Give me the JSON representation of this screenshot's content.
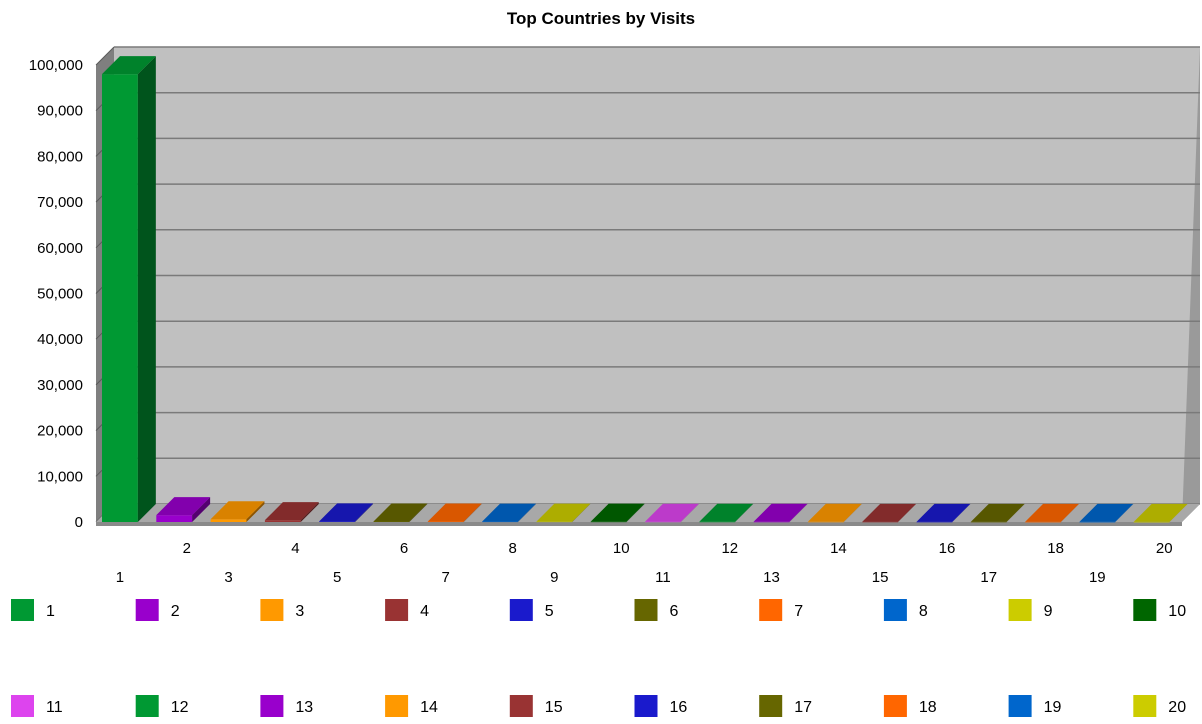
{
  "chart_data": {
    "type": "bar",
    "title": "Top Countries by Visits",
    "categories": [
      "1",
      "2",
      "3",
      "4",
      "5",
      "6",
      "7",
      "8",
      "9",
      "10",
      "11",
      "12",
      "13",
      "14",
      "15",
      "16",
      "17",
      "18",
      "19",
      "20"
    ],
    "values": [
      98000,
      1500,
      600,
      400,
      150,
      120,
      100,
      90,
      80,
      70,
      60,
      55,
      50,
      45,
      40,
      35,
      30,
      25,
      20,
      15
    ],
    "ylim": [
      0,
      100000
    ],
    "yticks": [
      "0",
      "10,000",
      "20,000",
      "30,000",
      "40,000",
      "50,000",
      "60,000",
      "70,000",
      "80,000",
      "90,000",
      "100,000"
    ],
    "grid": true,
    "three_d": true,
    "legend_position": "bottom",
    "legend": [
      "1",
      "2",
      "3",
      "4",
      "5",
      "6",
      "7",
      "8",
      "9",
      "10",
      "11",
      "12",
      "13",
      "14",
      "15",
      "16",
      "17",
      "18",
      "19",
      "20"
    ],
    "colors": [
      "#009933",
      "#9900cc",
      "#ff9900",
      "#993333",
      "#1a1acc",
      "#666600",
      "#ff6600",
      "#0066cc",
      "#cccc00",
      "#006600",
      "#dd44ee",
      "#009933",
      "#9900cc",
      "#ff9900",
      "#993333",
      "#1a1acc",
      "#666600",
      "#ff6600",
      "#0066cc",
      "#cccc00"
    ],
    "plot_background": "#c0c0c0"
  }
}
